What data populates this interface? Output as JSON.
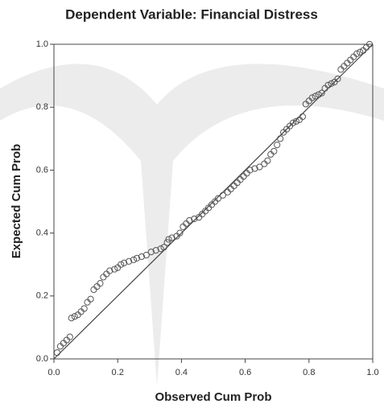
{
  "chart_data": {
    "type": "scatter",
    "title": "Dependent Variable: Financial Distress",
    "x_label": "Observed Cum Prob",
    "y_label": "Expected Cum Prob",
    "xlim": [
      0,
      1
    ],
    "ylim": [
      0,
      1
    ],
    "xticks": [
      {
        "value": 0,
        "label": "0.0"
      },
      0.2,
      0.4,
      0.6,
      0.8,
      {
        "value": 1,
        "label": "1.0"
      }
    ],
    "yticks": [
      {
        "value": 0,
        "label": "0.0"
      },
      0.2,
      0.4,
      0.6,
      0.8,
      {
        "value": 1,
        "label": "1.0"
      }
    ],
    "color": "#555555",
    "x": [
      0.01,
      0.02,
      0.03,
      0.04,
      0.05,
      0.055,
      0.065,
      0.075,
      0.085,
      0.095,
      0.105,
      0.115,
      0.125,
      0.135,
      0.145,
      0.155,
      0.165,
      0.175,
      0.19,
      0.2,
      0.21,
      0.22,
      0.235,
      0.25,
      0.26,
      0.275,
      0.29,
      0.305,
      0.32,
      0.335,
      0.345,
      0.355,
      0.36,
      0.37,
      0.385,
      0.395,
      0.405,
      0.415,
      0.425,
      0.44,
      0.455,
      0.465,
      0.475,
      0.485,
      0.495,
      0.505,
      0.515,
      0.53,
      0.545,
      0.555,
      0.565,
      0.575,
      0.585,
      0.595,
      0.605,
      0.615,
      0.63,
      0.645,
      0.66,
      0.67,
      0.68,
      0.69,
      0.7,
      0.71,
      0.72,
      0.73,
      0.74,
      0.75,
      0.76,
      0.77,
      0.78,
      0.79,
      0.8,
      0.81,
      0.82,
      0.83,
      0.84,
      0.85,
      0.86,
      0.87,
      0.88,
      0.89,
      0.9,
      0.91,
      0.92,
      0.93,
      0.94,
      0.95,
      0.96,
      0.97,
      0.98,
      0.99
    ],
    "values": [
      0.02,
      0.04,
      0.05,
      0.06,
      0.07,
      0.13,
      0.135,
      0.14,
      0.15,
      0.16,
      0.18,
      0.19,
      0.22,
      0.23,
      0.24,
      0.26,
      0.27,
      0.28,
      0.285,
      0.29,
      0.3,
      0.305,
      0.31,
      0.315,
      0.32,
      0.325,
      0.33,
      0.34,
      0.345,
      0.35,
      0.355,
      0.37,
      0.38,
      0.385,
      0.39,
      0.4,
      0.42,
      0.43,
      0.44,
      0.445,
      0.45,
      0.46,
      0.47,
      0.48,
      0.49,
      0.5,
      0.51,
      0.52,
      0.53,
      0.54,
      0.55,
      0.56,
      0.57,
      0.58,
      0.59,
      0.6,
      0.605,
      0.61,
      0.62,
      0.63,
      0.65,
      0.66,
      0.68,
      0.7,
      0.72,
      0.73,
      0.74,
      0.75,
      0.755,
      0.76,
      0.77,
      0.81,
      0.82,
      0.83,
      0.835,
      0.84,
      0.845,
      0.86,
      0.87,
      0.875,
      0.88,
      0.89,
      0.92,
      0.93,
      0.94,
      0.95,
      0.96,
      0.97,
      0.975,
      0.98,
      0.99,
      1.0
    ]
  }
}
